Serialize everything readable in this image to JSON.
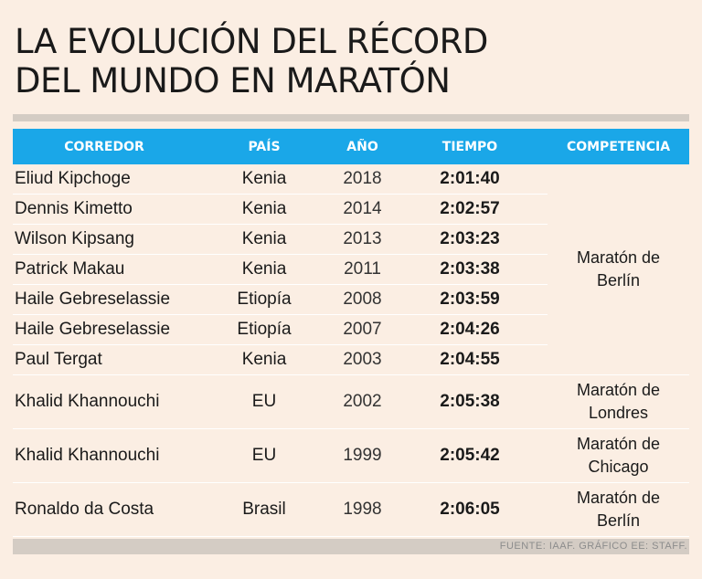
{
  "title": {
    "line1": "LA EVOLUCIÓN DEL RÉCORD",
    "line2": "DEL MUNDO EN MARATÓN"
  },
  "headers": {
    "runner": "CORREDOR",
    "country": "PAÍS",
    "year": "AÑO",
    "time": "TIEMPO",
    "competition": "COMPETENCIA"
  },
  "rows": [
    {
      "runner": "Eliud Kipchoge",
      "country": "Kenia",
      "year": "2018",
      "time": "2:01:40"
    },
    {
      "runner": "Dennis Kimetto",
      "country": "Kenia",
      "year": "2014",
      "time": "2:02:57"
    },
    {
      "runner": "Wilson Kipsang",
      "country": "Kenia",
      "year": "2013",
      "time": "2:03:23"
    },
    {
      "runner": "Patrick Makau",
      "country": "Kenia",
      "year": "2011",
      "time": "2:03:38"
    },
    {
      "runner": "Haile Gebreselassie",
      "country": "Etiopía",
      "year": "2008",
      "time": "2:03:59"
    },
    {
      "runner": "Haile Gebreselassie",
      "country": "Etiopía",
      "year": "2007",
      "time": "2:04:26"
    },
    {
      "runner": "Paul Tergat",
      "country": "Kenia",
      "year": "2003",
      "time": "2:04:55"
    },
    {
      "runner": "Khalid Khannouchi",
      "country": "EU",
      "year": "2002",
      "time": "2:05:38"
    },
    {
      "runner": "Khalid Khannouchi",
      "country": "EU",
      "year": "1999",
      "time": "2:05:42"
    },
    {
      "runner": "Ronaldo da Costa",
      "country": "Brasil",
      "year": "1998",
      "time": "2:06:05"
    }
  ],
  "competitions": {
    "berlin_group": [
      "Maratón de",
      "Berlín"
    ],
    "londres": [
      "Maratón de",
      "Londres"
    ],
    "chicago": [
      "Maratón de",
      "Chicago"
    ],
    "berlin_single": [
      "Maratón de",
      "Berlín"
    ]
  },
  "footer": "FUENTE: IAAF. GRÁFICO EE: STAFF.",
  "colors": {
    "header_bg": "#1aa7e8",
    "page_bg": "#fbeee3"
  }
}
